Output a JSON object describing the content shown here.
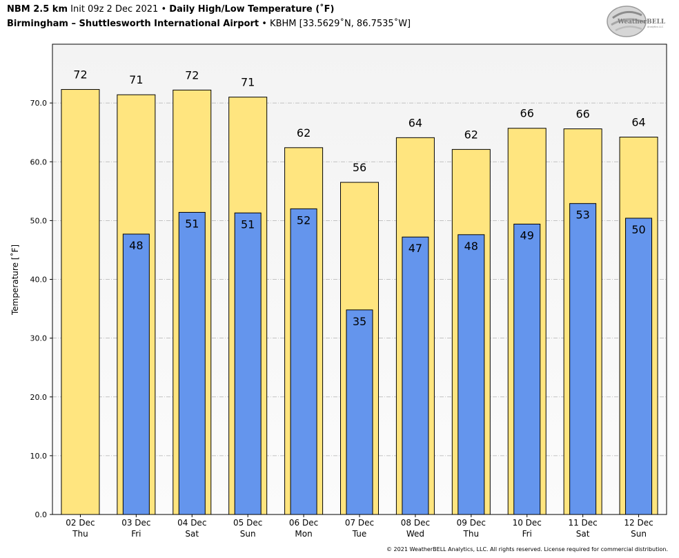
{
  "header": {
    "model": "NBM 2.5 km",
    "init": "Init 09z 2 Dec 2021",
    "bullet": "•",
    "product": "Daily High/Low Temperature (˚F)",
    "location": "Birmingham – Shuttlesworth International Airport",
    "station": "KBHM [33.5629˚N, 86.7535˚W]"
  },
  "logo": {
    "text_main": "WeatherBELL",
    "text_sub": "Analytics LLC"
  },
  "copyright": "© 2021 WeatherBELL Analytics, LLC. All rights reserved. License required for commercial distribution.",
  "colors": {
    "high_bar": "#FFE57F",
    "low_bar": "#6495ED",
    "plot_bg_top": "#f3f3f3",
    "plot_bg_bottom": "#fbfbfb",
    "grid": "#b0b0b0"
  },
  "chart_data": {
    "type": "bar",
    "ylabel": "Temperature [˚F]",
    "ylim": [
      0,
      80
    ],
    "yticks": [
      0,
      10,
      20,
      30,
      40,
      50,
      60,
      70
    ],
    "ytick_labels": [
      "0.0",
      "10.0",
      "20.0",
      "30.0",
      "40.0",
      "50.0",
      "60.0",
      "70.0"
    ],
    "grid": true,
    "categories": [
      {
        "date": "02 Dec",
        "day": "Thu"
      },
      {
        "date": "03 Dec",
        "day": "Fri"
      },
      {
        "date": "04 Dec",
        "day": "Sat"
      },
      {
        "date": "05 Dec",
        "day": "Sun"
      },
      {
        "date": "06 Dec",
        "day": "Mon"
      },
      {
        "date": "07 Dec",
        "day": "Tue"
      },
      {
        "date": "08 Dec",
        "day": "Wed"
      },
      {
        "date": "09 Dec",
        "day": "Thu"
      },
      {
        "date": "10 Dec",
        "day": "Fri"
      },
      {
        "date": "11 Dec",
        "day": "Sat"
      },
      {
        "date": "12 Dec",
        "day": "Sun"
      }
    ],
    "series": [
      {
        "name": "High",
        "values": [
          72.3,
          71.4,
          72.2,
          71.0,
          62.4,
          56.5,
          64.1,
          62.1,
          65.7,
          65.6,
          64.2
        ],
        "labels": [
          "72",
          "71",
          "72",
          "71",
          "62",
          "56",
          "64",
          "62",
          "66",
          "66",
          "64"
        ]
      },
      {
        "name": "Low",
        "values": [
          null,
          47.7,
          51.4,
          51.3,
          52.0,
          34.8,
          47.2,
          47.6,
          49.4,
          52.9,
          50.4
        ],
        "labels": [
          "",
          "48",
          "51",
          "51",
          "52",
          "35",
          "47",
          "48",
          "49",
          "53",
          "50"
        ]
      }
    ]
  }
}
